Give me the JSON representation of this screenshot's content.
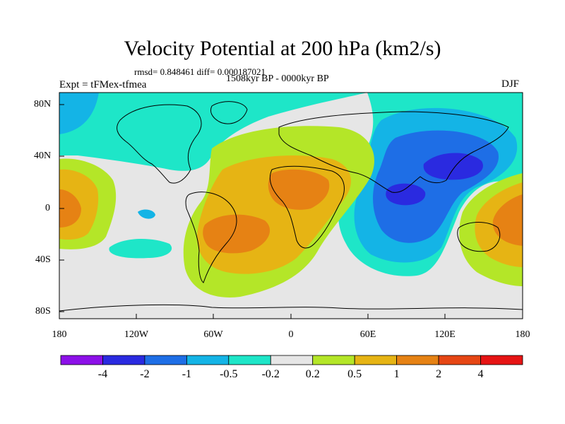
{
  "title": "Velocity Potential at 200 hPa (km2/s)",
  "stats": "rmsd= 0.848461 diff= 0.000187021",
  "period": "1508kyr BP - 0000kyr BP",
  "experiment": "Expt = tFMex-tfmea",
  "season": "DJF",
  "lat_ticks": [
    "80N",
    "40N",
    "0",
    "40S",
    "80S"
  ],
  "lon_ticks": [
    "180",
    "120W",
    "60W",
    "0",
    "60E",
    "120E",
    "180"
  ],
  "colorbar": {
    "labels": [
      "-4",
      "-2",
      "-1",
      "-0.5",
      "-0.2",
      "0.2",
      "0.5",
      "1",
      "2",
      "4"
    ],
    "colors": [
      "#8c10e8",
      "#2a2ae0",
      "#1e6ee6",
      "#14b4e6",
      "#1ee6c8",
      "#e6e6e6",
      "#b4e628",
      "#e6b414",
      "#e68214",
      "#e64614",
      "#e61414"
    ]
  }
}
